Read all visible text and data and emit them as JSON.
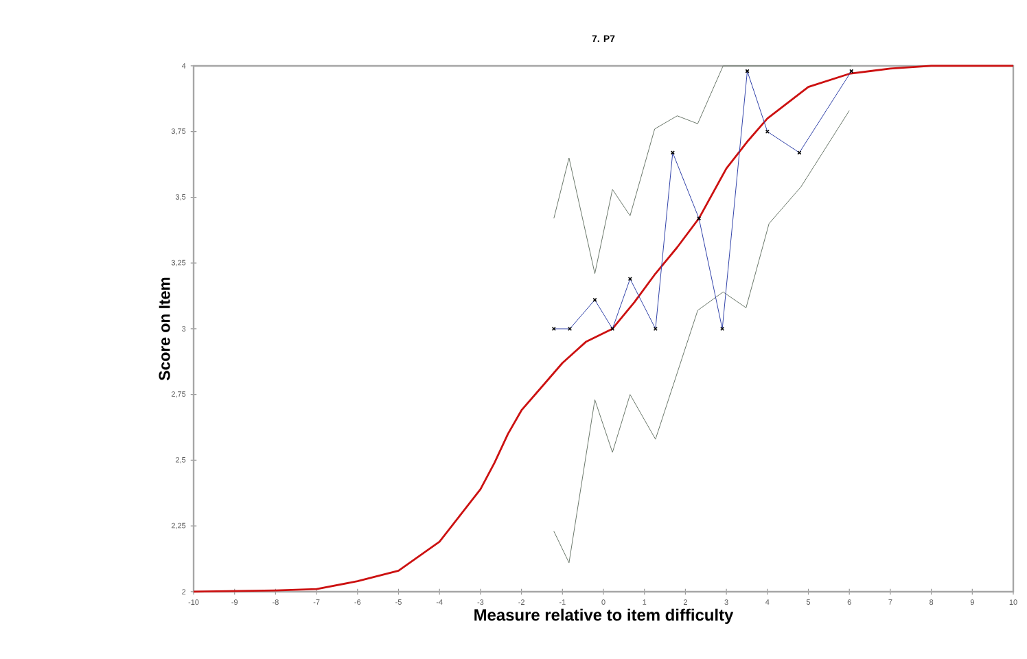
{
  "chart_data": {
    "type": "line",
    "title": "7. P7",
    "xlabel": "Measure relative to item difficulty",
    "ylabel": "Score on Item",
    "xlim": [
      -10,
      10
    ],
    "ylim": [
      2,
      4
    ],
    "xticks": [
      -10,
      -9,
      -8,
      -7,
      -6,
      -5,
      -4,
      -3,
      -2,
      -1,
      0,
      1,
      2,
      3,
      4,
      5,
      6,
      7,
      8,
      9,
      10
    ],
    "yticks": [
      2,
      {
        "value": 2.25,
        "label": "2,25"
      },
      {
        "value": 2.5,
        "label": "2,5"
      },
      {
        "value": 2.75,
        "label": "2,75"
      },
      3,
      {
        "value": 3.25,
        "label": "3,25"
      },
      {
        "value": 3.5,
        "label": "3,5"
      },
      {
        "value": 3.75,
        "label": "3,75"
      },
      4
    ],
    "series": [
      {
        "color": "#6b786b",
        "marker": "none",
        "x": [
          -1.21,
          -0.84,
          -0.21,
          0.22,
          0.65,
          1.25,
          1.8,
          2.3,
          2.92,
          3.5,
          4.0,
          4.78,
          6.05
        ],
        "values": [
          3.42,
          3.65,
          3.21,
          3.53,
          3.43,
          3.76,
          3.81,
          3.78,
          4.0,
          4.0,
          4.0,
          4.0,
          4.0
        ]
      },
      {
        "color": "#6b786b",
        "marker": "none",
        "x": [
          -1.21,
          -0.84,
          -0.21,
          0.22,
          0.65,
          1.27,
          2.3,
          2.92,
          3.48,
          4.04,
          4.82,
          6.0
        ],
        "values": [
          2.23,
          2.11,
          2.73,
          2.53,
          2.75,
          2.58,
          3.07,
          3.14,
          3.08,
          3.4,
          3.54,
          3.83
        ]
      },
      {
        "color": "#cc1111",
        "marker": "none",
        "x": [
          -10,
          -8,
          -7,
          -6,
          -5,
          -4,
          -3,
          -2.66,
          -2.33,
          -2,
          -1.5,
          -1,
          -0.43,
          0.22,
          0.75,
          1.27,
          1.8,
          2.33,
          3,
          3.5,
          4,
          5,
          6,
          7,
          8,
          10
        ],
        "values": [
          2,
          2.005,
          2.01,
          2.04,
          2.08,
          2.19,
          2.39,
          2.49,
          2.6,
          2.69,
          2.78,
          2.87,
          2.95,
          3.0,
          3.1,
          3.21,
          3.31,
          3.42,
          3.61,
          3.71,
          3.8,
          3.92,
          3.97,
          3.99,
          4,
          4
        ]
      },
      {
        "color": "#3344aa",
        "marker": "cross",
        "x": [
          -1.21,
          -0.82,
          -0.21,
          0.22,
          0.65,
          1.27,
          1.69,
          2.33,
          2.9,
          3.51,
          4.0,
          4.78,
          6.05
        ],
        "values": [
          3.0,
          3.0,
          3.11,
          3.0,
          3.19,
          3.0,
          3.67,
          3.42,
          3.0,
          3.98,
          3.75,
          3.67,
          3.98
        ]
      }
    ]
  }
}
